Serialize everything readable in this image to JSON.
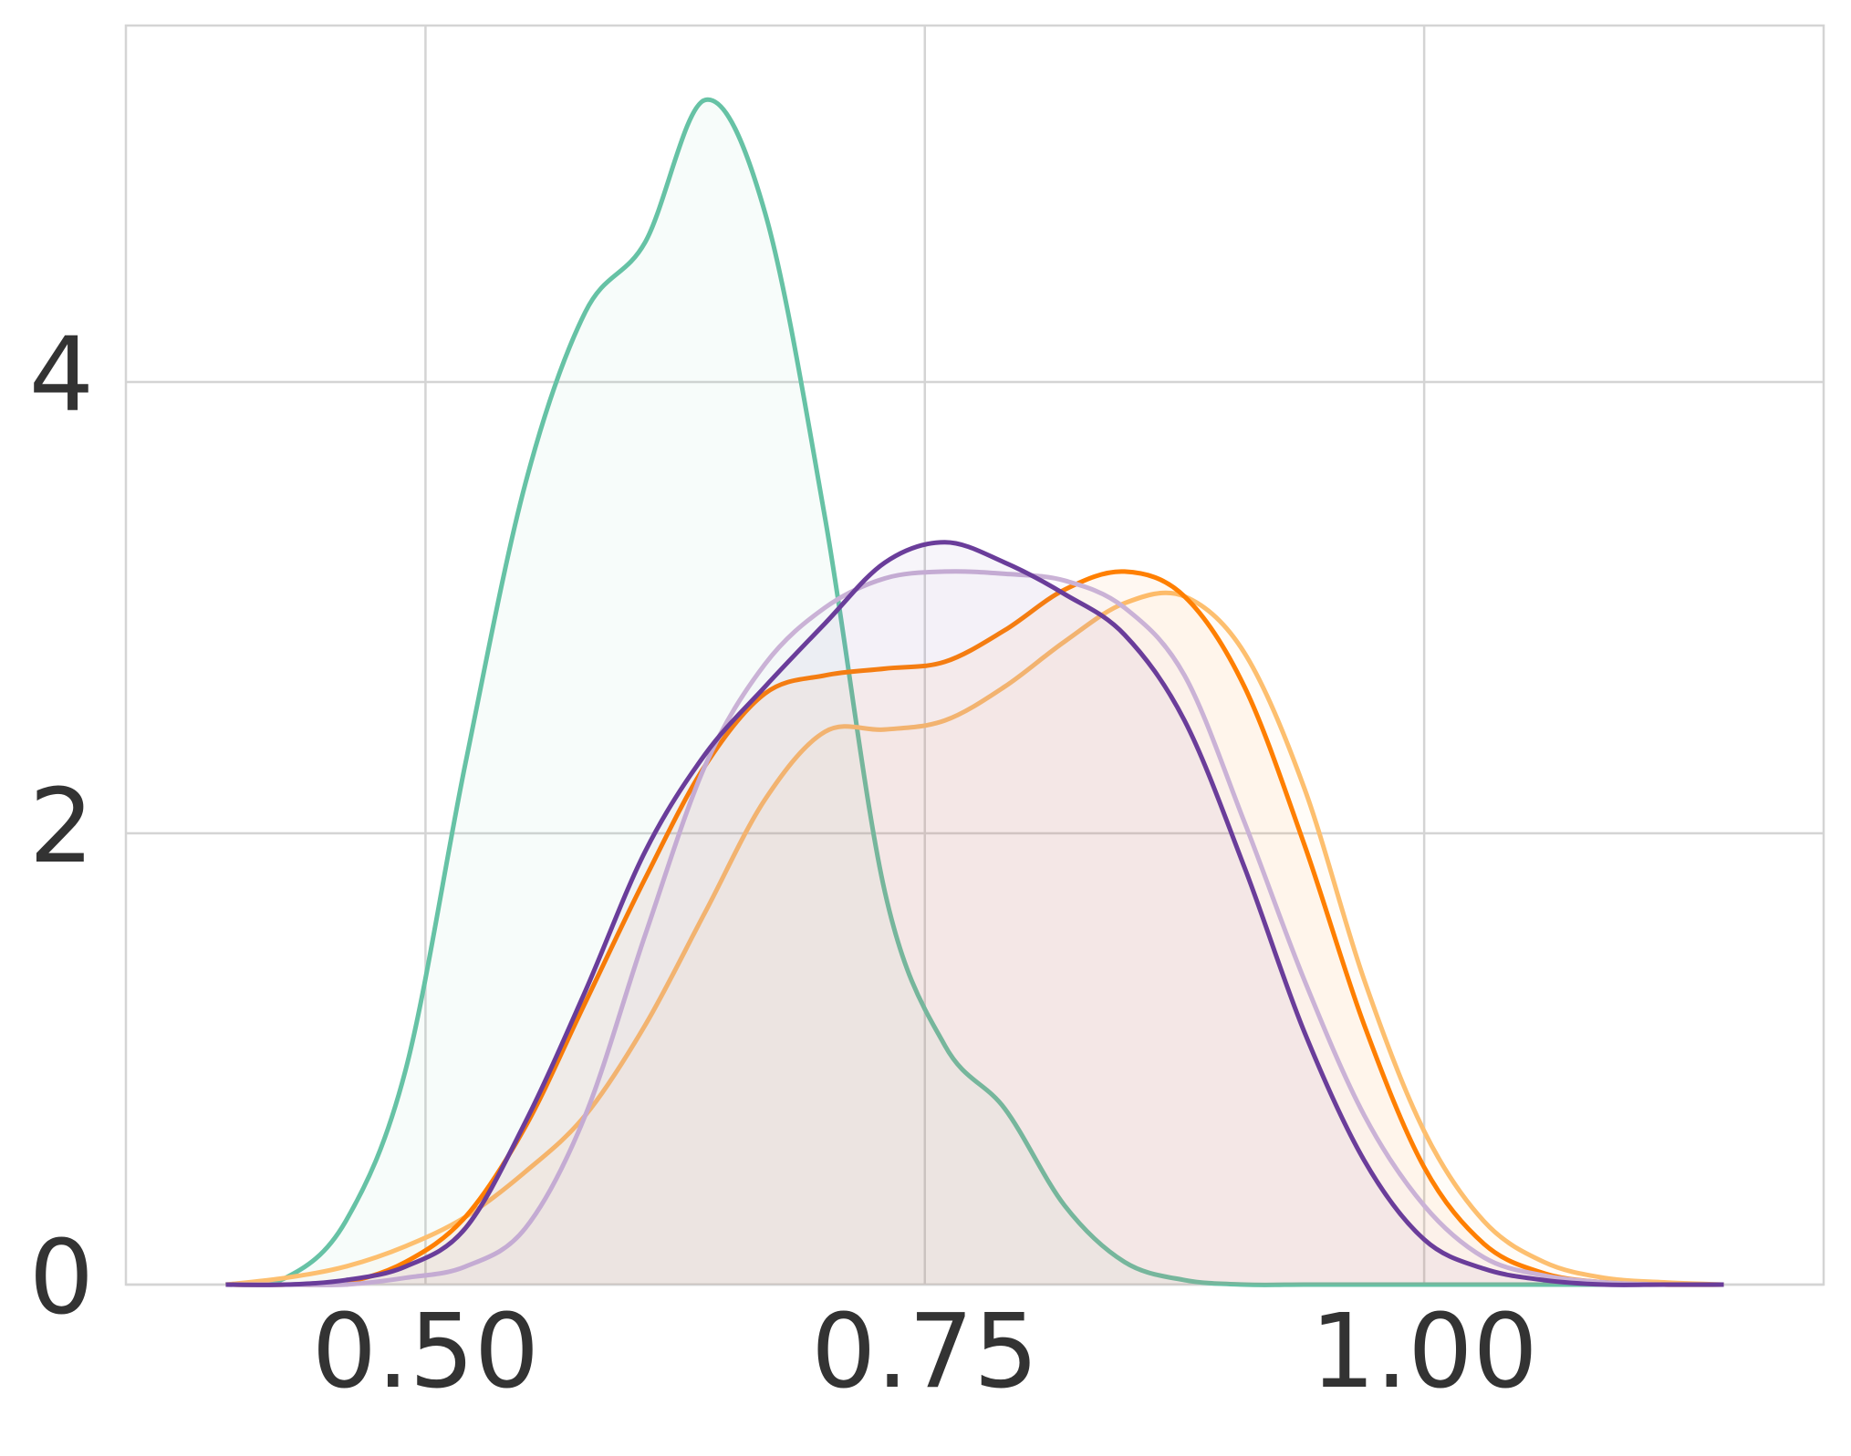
{
  "chart_data": {
    "type": "kde",
    "fill": true,
    "grid": true,
    "x": [
      0.4,
      0.43,
      0.46,
      0.49,
      0.52,
      0.55,
      0.58,
      0.61,
      0.64,
      0.67,
      0.7,
      0.73,
      0.76,
      0.79,
      0.82,
      0.85,
      0.88,
      0.91,
      0.94,
      0.97,
      1.0,
      1.03,
      1.06,
      1.09,
      1.12,
      1.15
    ],
    "series": [
      {
        "color": "#66c2a5",
        "values": [
          0.0,
          0.03,
          0.28,
          0.95,
          2.31,
          3.55,
          4.31,
          4.62,
          5.25,
          4.75,
          3.4,
          1.74,
          1.06,
          0.78,
          0.35,
          0.1,
          0.02,
          0.0,
          0.0,
          0.0,
          0.0,
          0.0,
          0.0,
          0.0,
          0.0,
          0.0
        ]
      },
      {
        "color": "#fdbf6f",
        "values": [
          0.0,
          0.03,
          0.08,
          0.17,
          0.3,
          0.5,
          0.75,
          1.15,
          1.65,
          2.15,
          2.45,
          2.46,
          2.5,
          2.65,
          2.85,
          3.02,
          3.05,
          2.8,
          2.2,
          1.35,
          0.68,
          0.28,
          0.1,
          0.03,
          0.01,
          0.0
        ]
      },
      {
        "color": "#ff7f00",
        "values": [
          0.0,
          0.0,
          0.01,
          0.1,
          0.3,
          0.7,
          1.25,
          1.8,
          2.3,
          2.62,
          2.7,
          2.73,
          2.76,
          2.9,
          3.08,
          3.16,
          3.05,
          2.65,
          1.95,
          1.15,
          0.52,
          0.18,
          0.05,
          0.01,
          0.0,
          0.0
        ]
      },
      {
        "color": "#cab2d6",
        "values": [
          0.0,
          0.0,
          0.0,
          0.03,
          0.08,
          0.25,
          0.75,
          1.55,
          2.3,
          2.75,
          3.0,
          3.13,
          3.16,
          3.15,
          3.12,
          3.0,
          2.7,
          2.05,
          1.35,
          0.75,
          0.35,
          0.12,
          0.04,
          0.01,
          0.0,
          0.0
        ]
      },
      {
        "color": "#6a3d9a",
        "values": [
          0.0,
          0.0,
          0.02,
          0.08,
          0.25,
          0.72,
          1.3,
          1.92,
          2.35,
          2.65,
          2.93,
          3.2,
          3.29,
          3.2,
          3.06,
          2.88,
          2.5,
          1.85,
          1.12,
          0.55,
          0.2,
          0.07,
          0.02,
          0.0,
          0.0,
          0.0
        ]
      }
    ],
    "xlim": [
      0.35,
      1.2
    ],
    "ylim": [
      0,
      5.58
    ],
    "xticks": [
      {
        "value": 0.5,
        "label": "0.50"
      },
      {
        "value": 0.75,
        "label": "0.75"
      },
      {
        "value": 1.0,
        "label": "1.00"
      }
    ],
    "yticks": [
      0,
      2,
      4
    ]
  }
}
